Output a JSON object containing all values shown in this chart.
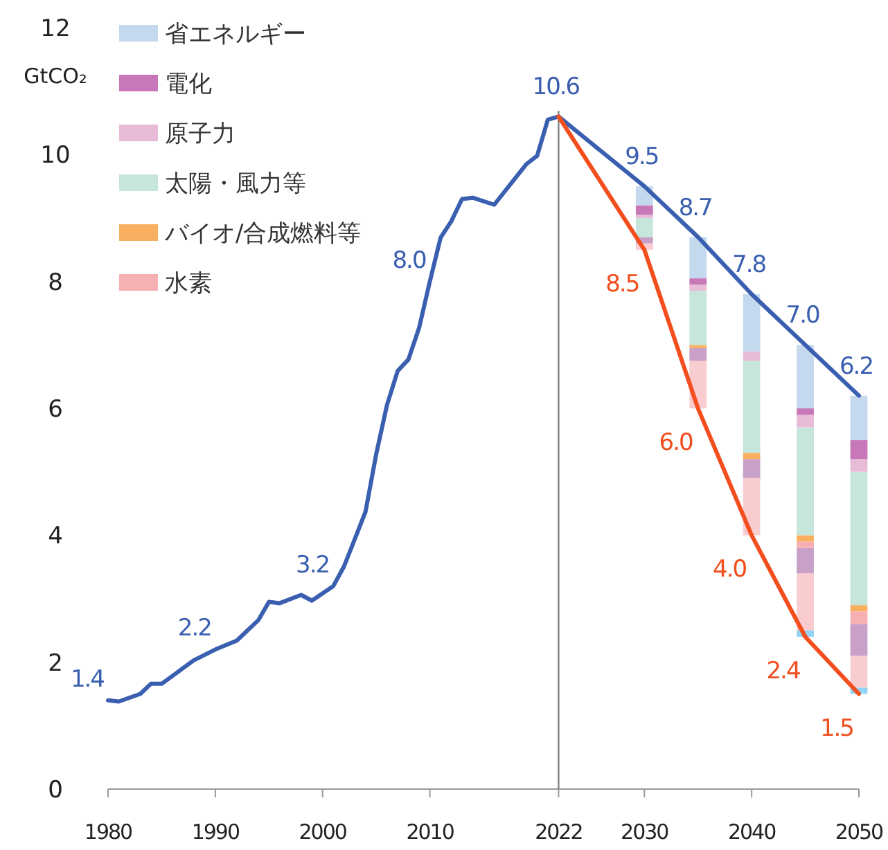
{
  "chart_data": {
    "type": "line",
    "ylabel": "GtCO₂",
    "xlim": [
      1980,
      2050
    ],
    "xticks": [
      1980,
      1990,
      2000,
      2010,
      2022,
      2030,
      2040,
      2050
    ],
    "ylim": [
      0,
      12
    ],
    "yticks": [
      0,
      2,
      4,
      6,
      8,
      10,
      12
    ],
    "grid": false,
    "legend": "top left",
    "ref_lines": [
      {
        "axis": "x",
        "value": 2022,
        "color": "#808080"
      }
    ],
    "series": [
      {
        "type": "bar",
        "color": "#93d3f3",
        "x": [
          2045,
          2050
        ],
        "base": [
          2.4,
          1.5
        ],
        "values": [
          0.1,
          0.1
        ]
      },
      {
        "type": "bar",
        "color": "#f9cdd0",
        "x": [
          2030,
          2035,
          2040,
          2045,
          2050
        ],
        "base": [
          8.5,
          6.0,
          4.0,
          2.5,
          1.6
        ],
        "values": [
          0.1,
          0.75,
          0.9,
          0.9,
          0.5
        ]
      },
      {
        "type": "bar",
        "color": "#c8a0c8",
        "x": [
          2030,
          2035,
          2040,
          2045,
          2050
        ],
        "base": [
          8.6,
          6.75,
          4.9,
          3.4,
          2.1
        ],
        "values": [
          0.1,
          0.2,
          0.3,
          0.4,
          0.5
        ]
      },
      {
        "type": "bar",
        "name": "水素",
        "color": "#f6b0b4",
        "x": [
          2045,
          2050
        ],
        "base": [
          3.8,
          2.6
        ],
        "values": [
          0.1,
          0.2
        ]
      },
      {
        "type": "bar",
        "name": "バイオ/合成燃料等",
        "color": "#f8b060",
        "x": [
          2035,
          2040,
          2045,
          2050
        ],
        "base": [
          6.95,
          5.2,
          3.9,
          2.8
        ],
        "values": [
          0.05,
          0.1,
          0.1,
          0.1
        ]
      },
      {
        "type": "bar",
        "name": "太陽・風力等",
        "color": "#c6e6dc",
        "x": [
          2030,
          2035,
          2040,
          2045,
          2050
        ],
        "base": [
          8.7,
          7.0,
          5.3,
          4.0,
          2.9
        ],
        "values": [
          0.3,
          0.85,
          1.45,
          1.7,
          2.1
        ]
      },
      {
        "type": "bar",
        "name": "原子力",
        "color": "#e8bcd8",
        "x": [
          2030,
          2035,
          2040,
          2045,
          2050
        ],
        "base": [
          9.0,
          7.85,
          6.75,
          5.7,
          5.0
        ],
        "values": [
          0.05,
          0.1,
          0.15,
          0.2,
          0.2
        ]
      },
      {
        "type": "bar",
        "name": "電化",
        "color": "#c878b8",
        "x": [
          2030,
          2035,
          2045,
          2050
        ],
        "base": [
          9.05,
          7.95,
          5.9,
          5.2
        ],
        "values": [
          0.15,
          0.1,
          0.1,
          0.3
        ]
      },
      {
        "type": "bar",
        "name": "省エネルギー",
        "color": "#c5d9ee",
        "x": [
          2030,
          2035,
          2040,
          2045,
          2050
        ],
        "base": [
          9.2,
          8.05,
          6.9,
          6.0,
          5.5
        ],
        "values": [
          0.3,
          0.65,
          0.9,
          1.0,
          0.7
        ]
      },
      {
        "color": "#3a5fb0",
        "x": [
          1980,
          1981,
          1983,
          1984,
          1985,
          1988,
          1990,
          1992,
          1994,
          1995,
          1996,
          1998,
          1999,
          2001,
          2002,
          2004,
          2005,
          2006,
          2007,
          2008,
          2009,
          2010,
          2011,
          2012,
          2013,
          2014,
          2016,
          2019,
          2020,
          2021,
          2022,
          2030,
          2035,
          2040,
          2045,
          2050
        ],
        "values": [
          1.4,
          1.38,
          1.5,
          1.66,
          1.66,
          2.03,
          2.2,
          2.34,
          2.66,
          2.95,
          2.93,
          3.06,
          2.97,
          3.2,
          3.51,
          4.37,
          5.28,
          6.05,
          6.59,
          6.77,
          7.27,
          8.0,
          8.69,
          8.95,
          9.3,
          9.32,
          9.21,
          9.85,
          9.98,
          10.55,
          10.6,
          9.5,
          8.7,
          7.8,
          7.0,
          6.2
        ],
        "value_labels": [
          "1.4",
          null,
          null,
          null,
          null,
          null,
          "2.2",
          null,
          null,
          null,
          null,
          null,
          null,
          "3.2",
          null,
          null,
          null,
          null,
          null,
          null,
          null,
          "8.0",
          null,
          null,
          null,
          null,
          null,
          null,
          null,
          null,
          "10.6",
          "9.5",
          "8.7",
          "7.8",
          "7.0",
          "6.2"
        ]
      },
      {
        "color": "#f24e1e",
        "x": [
          2022,
          2030,
          2035,
          2040,
          2045,
          2050
        ],
        "values": [
          10.6,
          8.5,
          6.0,
          4.0,
          2.4,
          1.5
        ],
        "value_labels": [
          null,
          "8.5",
          "6.0",
          "4.0",
          "2.4",
          "1.5"
        ]
      }
    ]
  }
}
